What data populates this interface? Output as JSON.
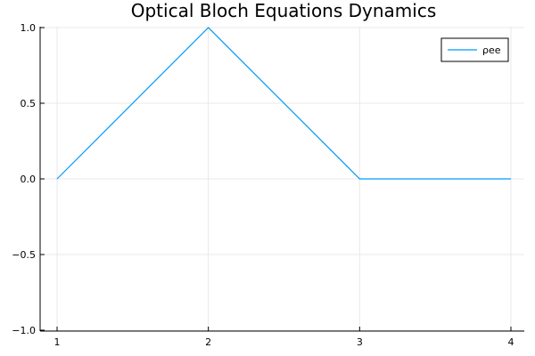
{
  "chart_data": {
    "type": "line",
    "title": "Optical Bloch Equations Dynamics",
    "xlabel": "",
    "ylabel": "",
    "x": [
      1,
      2,
      3,
      4
    ],
    "xticks": [
      "1",
      "2",
      "3",
      "4"
    ],
    "yticks": [
      "−1.0",
      "−0.5",
      "0.0",
      "0.5",
      "1.0"
    ],
    "ytick_values": [
      -1.0,
      -0.5,
      0.0,
      0.5,
      1.0
    ],
    "xlim": [
      1,
      4
    ],
    "ylim": [
      -1.0,
      1.0
    ],
    "grid": true,
    "legend_position": "top-right",
    "series": [
      {
        "name": "ρee",
        "color": "#009af9",
        "values": [
          0.0,
          1.0,
          0.0,
          0.0
        ]
      }
    ]
  }
}
